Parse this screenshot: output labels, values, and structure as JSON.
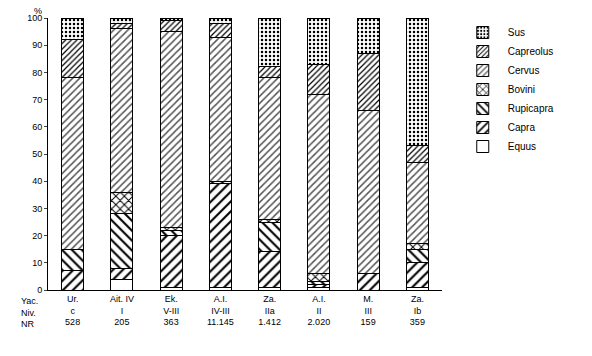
{
  "chart_data": {
    "type": "bar",
    "stacked": true,
    "y_label": "%",
    "categories": [
      "Ur.",
      "Ait. IV",
      "Ek.",
      "A.I.",
      "Za.",
      "A.I.",
      "M.",
      "Za."
    ],
    "category_rows": [
      {
        "label": "Yac.",
        "values": [
          "Ur.",
          "Ait. IV",
          "Ek.",
          "A.I.",
          "Za.",
          "A.I.",
          "M.",
          "Za."
        ]
      },
      {
        "label": "Niv.",
        "values": [
          "c",
          "I",
          "V-III",
          "IV-III",
          "IIa",
          "II",
          "III",
          "Ib"
        ]
      },
      {
        "label": "NR",
        "values": [
          "528",
          "205",
          "363",
          "11.145",
          "1.412",
          "2.020",
          "159",
          "359"
        ]
      }
    ],
    "series": [
      {
        "name": "Equus",
        "color": "#ffffff",
        "values": [
          0,
          4,
          1,
          1,
          1,
          1,
          0,
          1
        ]
      },
      {
        "name": "Capra",
        "color": "#ffffff",
        "values": [
          7,
          4,
          19,
          38,
          13,
          1,
          6,
          9
        ]
      },
      {
        "name": "Rupicapra",
        "color": "#ffffff",
        "values": [
          8,
          20,
          2,
          1,
          11,
          1,
          0,
          5
        ]
      },
      {
        "name": "Bovini",
        "color": "#ffffff",
        "values": [
          0,
          8,
          1,
          0,
          1,
          3,
          0,
          2
        ]
      },
      {
        "name": "Cervus",
        "color": "#d9d9d9",
        "values": [
          63,
          60,
          72,
          53,
          52,
          66,
          60,
          30
        ]
      },
      {
        "name": "Capreolus",
        "color": "#ffffff",
        "values": [
          14,
          2,
          4,
          5,
          4,
          11,
          21,
          6
        ]
      },
      {
        "name": "Sus",
        "color": "#4a4a4a",
        "values": [
          8,
          2,
          1,
          2,
          18,
          17,
          13,
          47
        ]
      }
    ],
    "ylim": [
      0,
      100
    ],
    "yticks": [
      0,
      10,
      20,
      30,
      40,
      50,
      60,
      70,
      80,
      90,
      100
    ],
    "legend": "right",
    "grid": false
  }
}
